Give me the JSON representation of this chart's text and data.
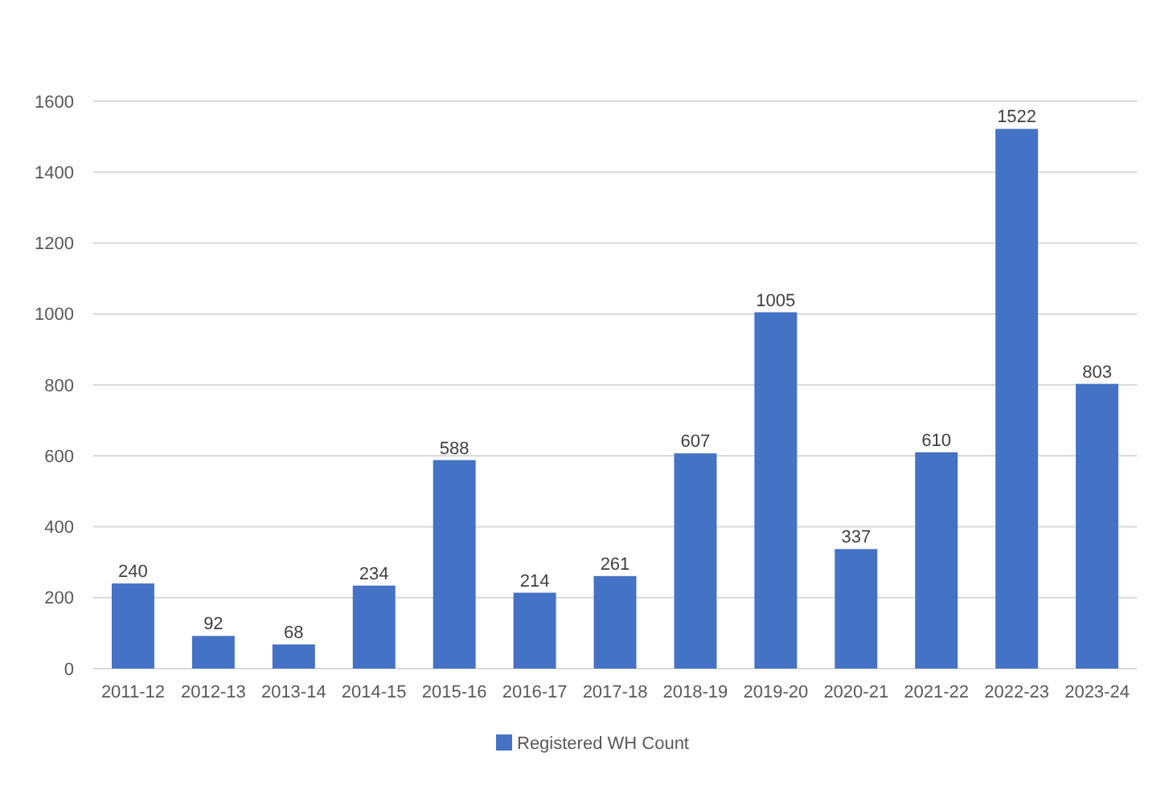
{
  "chart_data": {
    "type": "bar",
    "categories": [
      "2011-12",
      "2012-13",
      "2013-14",
      "2014-15",
      "2015-16",
      "2016-17",
      "2017-18",
      "2018-19",
      "2019-20",
      "2020-21",
      "2021-22",
      "2022-23",
      "2023-24"
    ],
    "series": [
      {
        "name": "Registered WH Count",
        "color": "#4472c4",
        "values": [
          240,
          92,
          68,
          234,
          588,
          214,
          261,
          607,
          1005,
          337,
          610,
          1522,
          803
        ]
      }
    ],
    "ylim": [
      0,
      1600
    ],
    "yticks": [
      0,
      200,
      400,
      600,
      800,
      1000,
      1200,
      1400,
      1600
    ],
    "grid": "y",
    "data_labels": true,
    "legend": "bottom"
  }
}
